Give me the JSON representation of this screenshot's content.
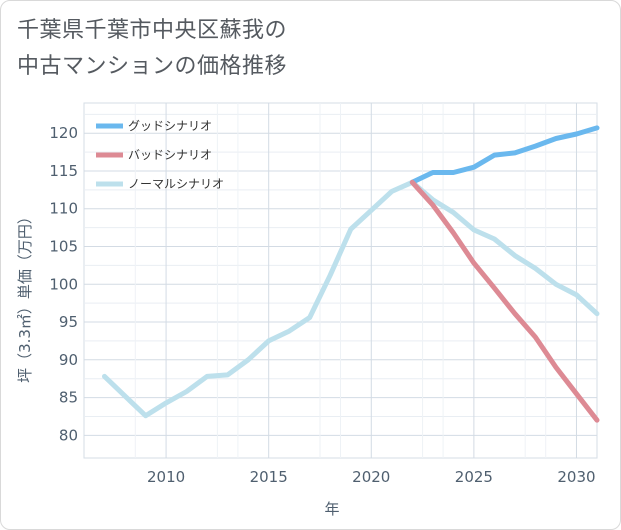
{
  "title_lines": [
    "千葉県千葉市中央区蘇我の",
    "中古マンションの価格推移"
  ],
  "chart_data": {
    "type": "line",
    "title": "千葉県千葉市中央区蘇我の中古マンションの価格推移",
    "xlabel": "年",
    "ylabel": "坪（3.3㎡）単価（万円）",
    "xlim": [
      2006,
      2031
    ],
    "ylim": [
      77,
      124
    ],
    "xticks": [
      2010,
      2015,
      2020,
      2025,
      2030
    ],
    "yticks": [
      80,
      85,
      90,
      95,
      100,
      105,
      110,
      115,
      120
    ],
    "grid": true,
    "legend_position": "top-left",
    "series": [
      {
        "name": "ノーマルシナリオ",
        "color": "#bde0ec",
        "x": [
          2007,
          2008,
          2009,
          2010,
          2011,
          2012,
          2013,
          2014,
          2015,
          2016,
          2017,
          2018,
          2019,
          2020,
          2021,
          2022,
          2023,
          2024,
          2025,
          2026,
          2027,
          2028,
          2029,
          2030,
          2031
        ],
        "values": [
          87.8,
          85.2,
          82.6,
          84.3,
          85.8,
          87.8,
          88.0,
          90.0,
          92.5,
          93.8,
          95.6,
          101.2,
          107.3,
          109.8,
          112.3,
          113.5,
          111.2,
          109.5,
          107.2,
          106.0,
          103.8,
          102.1,
          100.0,
          98.6,
          96.1
        ]
      },
      {
        "name": "グッドシナリオ",
        "color": "#6ab8ee",
        "x": [
          2022,
          2023,
          2024,
          2025,
          2026,
          2027,
          2028,
          2029,
          2030,
          2031
        ],
        "values": [
          113.5,
          114.8,
          114.8,
          115.5,
          117.1,
          117.4,
          118.3,
          119.3,
          119.9,
          120.7
        ]
      },
      {
        "name": "バッドシナリオ",
        "color": "#dd8a94",
        "x": [
          2022,
          2023,
          2024,
          2025,
          2026,
          2027,
          2028,
          2029,
          2030,
          2031
        ],
        "values": [
          113.5,
          110.5,
          106.8,
          102.8,
          99.5,
          96.1,
          93.0,
          89.0,
          85.5,
          82.0
        ]
      }
    ],
    "legend_order": [
      "グッドシナリオ",
      "バッドシナリオ",
      "ノーマルシナリオ"
    ]
  }
}
